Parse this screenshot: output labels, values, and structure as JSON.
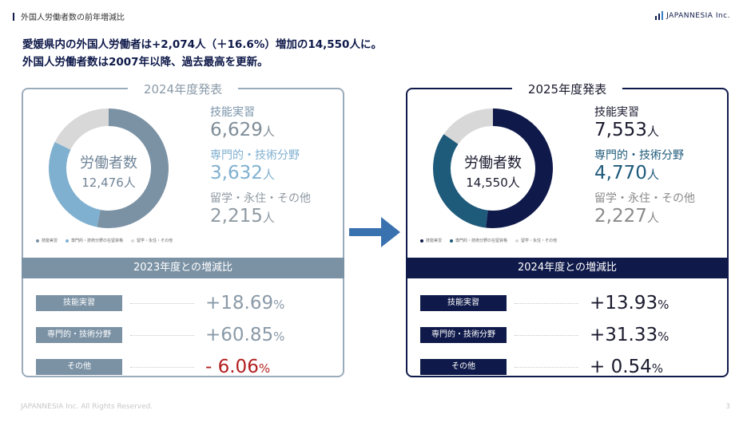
{
  "header": {
    "title": "外国人労働者数の前年増減比"
  },
  "logo": {
    "text": "JAPANNESIA Inc."
  },
  "headline": {
    "line1": "愛媛県内の外国人労働者は+2,074人（＋16.6%）増加の14,550人に。",
    "line2": "外国人労働者数は2007年以降、過去最高を更新。"
  },
  "colors": {
    "navy": "#0f1a4a",
    "teal": "#1e5a7a",
    "gray_light": "#d8d8d8",
    "left_dark": "#7b92a5",
    "left_light": "#7fb0d0",
    "negative": "#b32020"
  },
  "left": {
    "title": "2024年度発表",
    "donut_title": "労働者数",
    "donut_total": "12,476人",
    "legend": [
      "技能実習",
      "専門的・技術分野の在留資格",
      "留学・永住・その他"
    ],
    "stats": [
      {
        "label": "技能実習",
        "value": "6,629",
        "unit": "人"
      },
      {
        "label": "専門的・技術分野",
        "value": "3,632",
        "unit": "人"
      },
      {
        "label": "留学・永住・その他",
        "value": "2,215",
        "unit": "人"
      }
    ],
    "compare_title": "2023年度との増減比",
    "rows": [
      {
        "tag": "技能実習",
        "pct": "+18.69",
        "unit": "%"
      },
      {
        "tag": "専門的・技術分野",
        "pct": "+60.85",
        "unit": "%"
      },
      {
        "tag": "その他",
        "pct": "-  6.06",
        "unit": "%"
      }
    ],
    "chart_data": {
      "type": "pie",
      "categories": [
        "技能実習",
        "専門的・技術分野の在留資格",
        "留学・永住・その他"
      ],
      "values": [
        6629,
        3632,
        2215
      ]
    }
  },
  "right": {
    "title": "2025年度発表",
    "donut_title": "労働者数",
    "donut_total": "14,550人",
    "legend": [
      "技能実習",
      "専門的・技術分野の在留資格",
      "留学・永住・その他"
    ],
    "stats": [
      {
        "label": "技能実習",
        "value": "7,553",
        "unit": "人"
      },
      {
        "label": "専門的・技術分野",
        "value": "4,770",
        "unit": "人"
      },
      {
        "label": "留学・永住・その他",
        "value": "2,227",
        "unit": "人"
      }
    ],
    "compare_title": "2024年度との増減比",
    "rows": [
      {
        "tag": "技能実習",
        "pct": "+13.93",
        "unit": "%"
      },
      {
        "tag": "専門的・技術分野",
        "pct": "+31.33",
        "unit": "%"
      },
      {
        "tag": "その他",
        "pct": "+  0.54",
        "unit": "%"
      }
    ],
    "chart_data": {
      "type": "pie",
      "categories": [
        "技能実習",
        "専門的・技術分野の在留資格",
        "留学・永住・その他"
      ],
      "values": [
        7553,
        4770,
        2227
      ]
    }
  },
  "footer": {
    "copyright": "JAPANNESIA Inc. All Rights Reserved.",
    "page": "3"
  }
}
